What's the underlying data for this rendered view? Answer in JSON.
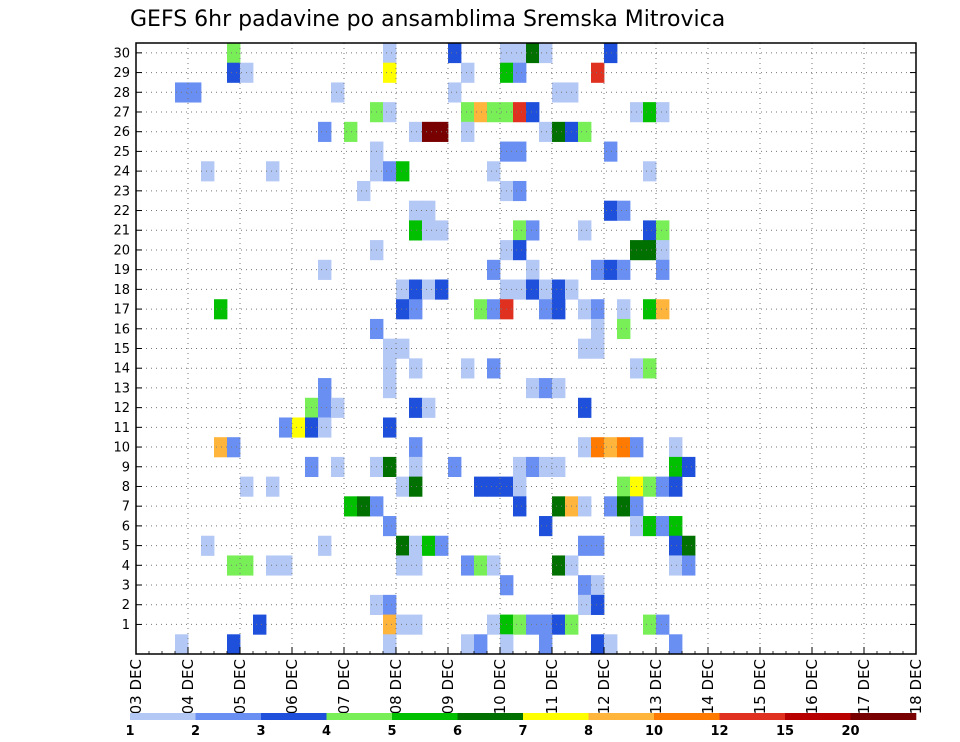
{
  "chart_data": {
    "type": "heatmap",
    "title": "GEFS 6hr padavine po ansamblima Sremska Mitrovica",
    "xlabel": "",
    "ylabel": "",
    "x_ticks": [
      "03 DEC",
      "04 DEC",
      "05 DEC",
      "06 DEC",
      "07 DEC",
      "08 DEC",
      "09 DEC",
      "10 DEC",
      "11 DEC",
      "12 DEC",
      "13 DEC",
      "14 DEC",
      "15 DEC",
      "16 DEC",
      "17 DEC",
      "18 DEC"
    ],
    "x_unit": "6-hour steps",
    "y_ticks": [
      1,
      2,
      3,
      4,
      5,
      6,
      7,
      8,
      9,
      10,
      11,
      12,
      13,
      14,
      15,
      16,
      17,
      18,
      19,
      20,
      21,
      22,
      23,
      24,
      25,
      26,
      27,
      28,
      29,
      30
    ],
    "ylim": [
      0,
      30
    ],
    "grid": true,
    "levels": [
      "1",
      "2",
      "3",
      "4",
      "5",
      "6",
      "7",
      "8",
      "10",
      "12",
      "15",
      "20"
    ],
    "colors": [
      "#b4c8f5",
      "#6a8ff2",
      "#1e50dc",
      "#78ef57",
      "#00c000",
      "#007000",
      "#ffff00",
      "#ffb43c",
      "#ff7a00",
      "#e03020",
      "#b80000",
      "#780000"
    ],
    "cells": [
      [
        30,
        7,
        3
      ],
      [
        30,
        19,
        0
      ],
      [
        30,
        24,
        2
      ],
      [
        30,
        28,
        0
      ],
      [
        30,
        29,
        0
      ],
      [
        30,
        30,
        5
      ],
      [
        30,
        31,
        0
      ],
      [
        30,
        36,
        2
      ],
      [
        29,
        7,
        2
      ],
      [
        29,
        8,
        0
      ],
      [
        29,
        19,
        6
      ],
      [
        29,
        25,
        0
      ],
      [
        29,
        28,
        4
      ],
      [
        29,
        29,
        1
      ],
      [
        29,
        35,
        9
      ],
      [
        28,
        3,
        1
      ],
      [
        28,
        4,
        1
      ],
      [
        28,
        15,
        0
      ],
      [
        28,
        24,
        0
      ],
      [
        28,
        32,
        0
      ],
      [
        28,
        33,
        0
      ],
      [
        27,
        18,
        3
      ],
      [
        27,
        19,
        0
      ],
      [
        27,
        25,
        3
      ],
      [
        27,
        26,
        7
      ],
      [
        27,
        27,
        3
      ],
      [
        27,
        28,
        3
      ],
      [
        27,
        29,
        9
      ],
      [
        27,
        30,
        2
      ],
      [
        27,
        38,
        0
      ],
      [
        27,
        39,
        4
      ],
      [
        27,
        40,
        0
      ],
      [
        26,
        14,
        1
      ],
      [
        26,
        16,
        3
      ],
      [
        26,
        21,
        0
      ],
      [
        26,
        22,
        11
      ],
      [
        26,
        23,
        11
      ],
      [
        26,
        25,
        0
      ],
      [
        26,
        31,
        0
      ],
      [
        26,
        32,
        5
      ],
      [
        26,
        33,
        2
      ],
      [
        26,
        34,
        3
      ],
      [
        25,
        18,
        0
      ],
      [
        25,
        28,
        1
      ],
      [
        25,
        29,
        1
      ],
      [
        25,
        36,
        1
      ],
      [
        24,
        5,
        0
      ],
      [
        24,
        10,
        0
      ],
      [
        24,
        18,
        0
      ],
      [
        24,
        19,
        1
      ],
      [
        24,
        20,
        4
      ],
      [
        24,
        27,
        0
      ],
      [
        24,
        39,
        0
      ],
      [
        23,
        17,
        0
      ],
      [
        23,
        28,
        0
      ],
      [
        23,
        29,
        1
      ],
      [
        22,
        21,
        0
      ],
      [
        22,
        22,
        0
      ],
      [
        22,
        36,
        2
      ],
      [
        22,
        37,
        1
      ],
      [
        21,
        21,
        4
      ],
      [
        21,
        22,
        0
      ],
      [
        21,
        23,
        0
      ],
      [
        21,
        29,
        3
      ],
      [
        21,
        30,
        1
      ],
      [
        21,
        34,
        0
      ],
      [
        21,
        39,
        2
      ],
      [
        21,
        40,
        3
      ],
      [
        20,
        18,
        0
      ],
      [
        20,
        28,
        0
      ],
      [
        20,
        29,
        2
      ],
      [
        20,
        38,
        5
      ],
      [
        20,
        39,
        5
      ],
      [
        20,
        40,
        0
      ],
      [
        19,
        14,
        0
      ],
      [
        19,
        27,
        1
      ],
      [
        19,
        30,
        0
      ],
      [
        19,
        35,
        1
      ],
      [
        19,
        36,
        2
      ],
      [
        19,
        37,
        1
      ],
      [
        19,
        40,
        1
      ],
      [
        18,
        20,
        0
      ],
      [
        18,
        21,
        2
      ],
      [
        18,
        22,
        0
      ],
      [
        18,
        23,
        2
      ],
      [
        18,
        28,
        0
      ],
      [
        18,
        29,
        0
      ],
      [
        18,
        30,
        2
      ],
      [
        18,
        31,
        0
      ],
      [
        18,
        32,
        2
      ],
      [
        18,
        33,
        0
      ],
      [
        17,
        6,
        4
      ],
      [
        17,
        20,
        2
      ],
      [
        17,
        21,
        1
      ],
      [
        17,
        26,
        3
      ],
      [
        17,
        27,
        1
      ],
      [
        17,
        28,
        9
      ],
      [
        17,
        31,
        1
      ],
      [
        17,
        32,
        2
      ],
      [
        17,
        34,
        0
      ],
      [
        17,
        35,
        1
      ],
      [
        17,
        37,
        0
      ],
      [
        17,
        39,
        4
      ],
      [
        17,
        40,
        7
      ],
      [
        16,
        18,
        1
      ],
      [
        16,
        35,
        0
      ],
      [
        16,
        37,
        3
      ],
      [
        15,
        19,
        0
      ],
      [
        15,
        20,
        0
      ],
      [
        15,
        34,
        0
      ],
      [
        15,
        35,
        0
      ],
      [
        14,
        19,
        0
      ],
      [
        14,
        21,
        0
      ],
      [
        14,
        25,
        0
      ],
      [
        14,
        27,
        1
      ],
      [
        14,
        38,
        0
      ],
      [
        14,
        39,
        3
      ],
      [
        13,
        14,
        1
      ],
      [
        13,
        19,
        0
      ],
      [
        13,
        30,
        0
      ],
      [
        13,
        31,
        1
      ],
      [
        13,
        32,
        0
      ],
      [
        12,
        13,
        3
      ],
      [
        12,
        14,
        1
      ],
      [
        12,
        15,
        0
      ],
      [
        12,
        21,
        2
      ],
      [
        12,
        22,
        0
      ],
      [
        12,
        34,
        2
      ],
      [
        11,
        11,
        1
      ],
      [
        11,
        12,
        6
      ],
      [
        11,
        13,
        2
      ],
      [
        11,
        14,
        0
      ],
      [
        11,
        19,
        2
      ],
      [
        10,
        6,
        7
      ],
      [
        10,
        7,
        1
      ],
      [
        10,
        21,
        1
      ],
      [
        10,
        34,
        0
      ],
      [
        10,
        35,
        8
      ],
      [
        10,
        36,
        7
      ],
      [
        10,
        37,
        8
      ],
      [
        10,
        38,
        1
      ],
      [
        10,
        41,
        0
      ],
      [
        9,
        13,
        1
      ],
      [
        9,
        15,
        0
      ],
      [
        9,
        18,
        0
      ],
      [
        9,
        19,
        5
      ],
      [
        9,
        21,
        0
      ],
      [
        9,
        24,
        1
      ],
      [
        9,
        29,
        0
      ],
      [
        9,
        30,
        1
      ],
      [
        9,
        31,
        0
      ],
      [
        9,
        32,
        0
      ],
      [
        9,
        41,
        4
      ],
      [
        9,
        42,
        2
      ],
      [
        8,
        8,
        0
      ],
      [
        8,
        10,
        0
      ],
      [
        8,
        20,
        0
      ],
      [
        8,
        21,
        5
      ],
      [
        8,
        26,
        2
      ],
      [
        8,
        27,
        2
      ],
      [
        8,
        28,
        2
      ],
      [
        8,
        29,
        0
      ],
      [
        8,
        37,
        3
      ],
      [
        8,
        38,
        6
      ],
      [
        8,
        39,
        3
      ],
      [
        8,
        40,
        1
      ],
      [
        8,
        41,
        2
      ],
      [
        7,
        16,
        4
      ],
      [
        7,
        17,
        5
      ],
      [
        7,
        18,
        1
      ],
      [
        7,
        29,
        2
      ],
      [
        7,
        32,
        5
      ],
      [
        7,
        33,
        7
      ],
      [
        7,
        34,
        0
      ],
      [
        7,
        36,
        1
      ],
      [
        7,
        37,
        5
      ],
      [
        7,
        38,
        1
      ],
      [
        6,
        19,
        1
      ],
      [
        6,
        31,
        2
      ],
      [
        6,
        38,
        0
      ],
      [
        6,
        39,
        4
      ],
      [
        6,
        40,
        1
      ],
      [
        6,
        41,
        4
      ],
      [
        5,
        5,
        0
      ],
      [
        5,
        14,
        0
      ],
      [
        5,
        20,
        5
      ],
      [
        5,
        21,
        0
      ],
      [
        5,
        22,
        4
      ],
      [
        5,
        23,
        1
      ],
      [
        5,
        34,
        1
      ],
      [
        5,
        35,
        1
      ],
      [
        5,
        41,
        2
      ],
      [
        5,
        42,
        5
      ],
      [
        4,
        7,
        3
      ],
      [
        4,
        8,
        3
      ],
      [
        4,
        10,
        0
      ],
      [
        4,
        11,
        0
      ],
      [
        4,
        20,
        0
      ],
      [
        4,
        21,
        0
      ],
      [
        4,
        25,
        1
      ],
      [
        4,
        26,
        3
      ],
      [
        4,
        27,
        0
      ],
      [
        4,
        32,
        5
      ],
      [
        4,
        33,
        0
      ],
      [
        4,
        41,
        0
      ],
      [
        4,
        42,
        1
      ],
      [
        3,
        28,
        1
      ],
      [
        3,
        34,
        1
      ],
      [
        3,
        35,
        0
      ],
      [
        2,
        18,
        0
      ],
      [
        2,
        19,
        1
      ],
      [
        2,
        34,
        0
      ],
      [
        2,
        35,
        2
      ],
      [
        1,
        9,
        2
      ],
      [
        1,
        19,
        7
      ],
      [
        1,
        20,
        0
      ],
      [
        1,
        21,
        0
      ],
      [
        1,
        27,
        0
      ],
      [
        1,
        28,
        4
      ],
      [
        1,
        29,
        3
      ],
      [
        1,
        30,
        1
      ],
      [
        1,
        31,
        1
      ],
      [
        1,
        32,
        2
      ],
      [
        1,
        33,
        3
      ],
      [
        1,
        39,
        3
      ],
      [
        1,
        40,
        1
      ],
      [
        0,
        3,
        0
      ],
      [
        0,
        7,
        2
      ],
      [
        0,
        19,
        0
      ],
      [
        0,
        25,
        0
      ],
      [
        0,
        26,
        1
      ],
      [
        0,
        28,
        0
      ],
      [
        0,
        31,
        1
      ],
      [
        0,
        35,
        2
      ],
      [
        0,
        36,
        0
      ],
      [
        0,
        41,
        1
      ]
    ]
  }
}
